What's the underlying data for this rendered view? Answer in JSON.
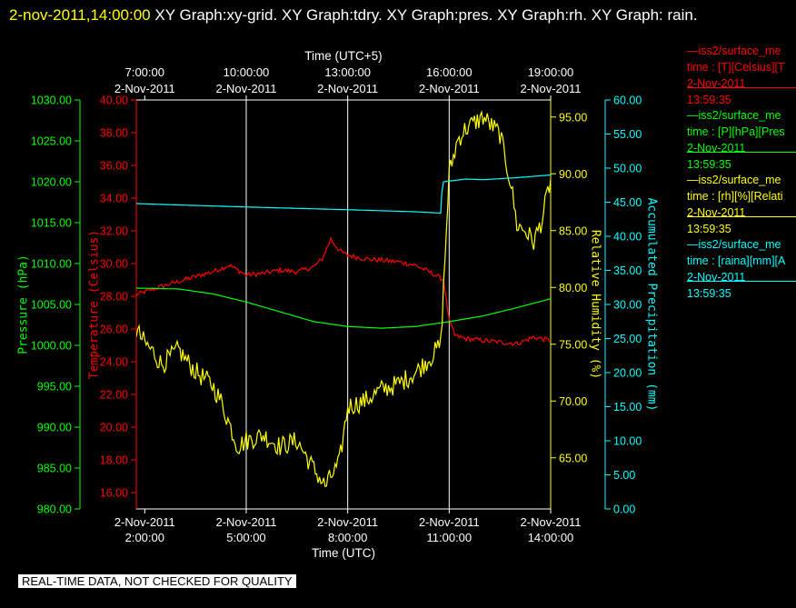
{
  "title": {
    "timestamp": "2-nov-2011,14:00:00",
    "text": "XY Graph:xy-grid.  XY Graph:tdry.  XY Graph:pres.  XY Graph:rh.  XY Graph: rain."
  },
  "footer": "REAL-TIME DATA, NOT CHECKED FOR QUALITY",
  "colors": {
    "temperature": "#ff0000",
    "pressure": "#00ff00",
    "humidity": "#ffff00",
    "precip": "#00ffff",
    "grid": "#ffffff",
    "background": "#000000"
  },
  "legend": [
    {
      "line1": "—iss2/surface_me",
      "line2": "time : [T][Celsius][T",
      "date": "2-Nov-2011",
      "time": "13:59:35",
      "color": "#ff0000"
    },
    {
      "line1": "—iss2/surface_me",
      "line2": "time : [P][hPa][Pres",
      "date": "2-Nov-2011",
      "time": "13:59:35",
      "color": "#00ff00"
    },
    {
      "line1": "—iss2/surface_me",
      "line2": "time : [rh][%][Relati",
      "date": "2-Nov-2011",
      "time": "13:59:35",
      "color": "#ffff00"
    },
    {
      "line1": "—iss2/surface_me",
      "line2": "time : [raina][mm][A",
      "date": "2-Nov-2011",
      "time": "13:59:35",
      "color": "#00ffff"
    }
  ],
  "chart_data": {
    "type": "line",
    "xlabel": "Time (UTC)",
    "x2label": "Time (UTC+5)",
    "xlim": [
      "2011-11-02 01:45",
      "2011-11-02 14:00"
    ],
    "x_ticks": [
      {
        "time": "2011-11-02 02:00",
        "date": "2-Nov-2011",
        "label": "2:00:00"
      },
      {
        "time": "2011-11-02 05:00",
        "date": "2-Nov-2011",
        "label": "5:00:00"
      },
      {
        "time": "2011-11-02 08:00",
        "date": "2-Nov-2011",
        "label": "8:00:00"
      },
      {
        "time": "2011-11-02 11:00",
        "date": "2-Nov-2011",
        "label": "11:00:00"
      },
      {
        "time": "2011-11-02 14:00",
        "date": "2-Nov-2011",
        "label": "14:00:00"
      }
    ],
    "x2_ticks": [
      {
        "time": "2011-11-02 02:00",
        "date": "2-Nov-2011",
        "label": "7:00:00"
      },
      {
        "time": "2011-11-02 05:00",
        "date": "2-Nov-2011",
        "label": "10:00:00"
      },
      {
        "time": "2011-11-02 08:00",
        "date": "2-Nov-2011",
        "label": "13:00:00"
      },
      {
        "time": "2011-11-02 11:00",
        "date": "2-Nov-2011",
        "label": "16:00:00"
      },
      {
        "time": "2011-11-02 14:00",
        "date": "2-Nov-2011",
        "label": "19:00:00"
      }
    ],
    "grid": true,
    "axes": {
      "pressure": {
        "label": "Pressure (hPa)",
        "lim": [
          980,
          1030
        ],
        "ticks": [
          "980.00",
          "985.00",
          "990.00",
          "995.00",
          "1000.00",
          "1005.00",
          "1010.00",
          "1015.00",
          "1020.00",
          "1025.00",
          "1030.00"
        ]
      },
      "temperature": {
        "label": "Temperature (Celsius)",
        "lim": [
          15,
          40
        ],
        "ticks": [
          "16.00",
          "18.00",
          "20.00",
          "22.00",
          "24.00",
          "26.00",
          "28.00",
          "30.00",
          "32.00",
          "34.00",
          "36.00",
          "38.00",
          "40.00"
        ]
      },
      "humidity": {
        "label": "Relative Humidity (%)",
        "lim": [
          60.5,
          96.5
        ],
        "ticks": [
          "65.00",
          "70.00",
          "75.00",
          "80.00",
          "85.00",
          "90.00",
          "95.00"
        ]
      },
      "precip": {
        "label": "Accumulated Precipitation (mm)",
        "lim": [
          0,
          60
        ],
        "ticks": [
          "0.00",
          "5.00",
          "10.00",
          "15.00",
          "20.00",
          "25.00",
          "30.00",
          "35.00",
          "40.00",
          "45.00",
          "50.00",
          "55.00",
          "60.00"
        ]
      }
    },
    "series": [
      {
        "key": "temperature",
        "axis": "temperature",
        "jitter": 0.15,
        "points": [
          [
            "2011-11-02 01:45",
            28.1
          ],
          [
            "2011-11-02 02:30",
            28.6
          ],
          [
            "2011-11-02 03:00",
            28.9
          ],
          [
            "2011-11-02 03:30",
            29.2
          ],
          [
            "2011-11-02 04:00",
            29.5
          ],
          [
            "2011-11-02 04:30",
            29.9
          ],
          [
            "2011-11-02 05:00",
            29.3
          ],
          [
            "2011-11-02 05:30",
            29.4
          ],
          [
            "2011-11-02 06:00",
            29.6
          ],
          [
            "2011-11-02 06:30",
            29.5
          ],
          [
            "2011-11-02 07:00",
            29.8
          ],
          [
            "2011-11-02 07:15",
            30.3
          ],
          [
            "2011-11-02 07:30",
            31.5
          ],
          [
            "2011-11-02 07:45",
            30.8
          ],
          [
            "2011-11-02 08:00",
            30.5
          ],
          [
            "2011-11-02 08:30",
            30.3
          ],
          [
            "2011-11-02 09:00",
            30.2
          ],
          [
            "2011-11-02 09:30",
            30.1
          ],
          [
            "2011-11-02 10:00",
            29.9
          ],
          [
            "2011-11-02 10:30",
            29.4
          ],
          [
            "2011-11-02 10:50",
            29.0
          ],
          [
            "2011-11-02 11:00",
            26.5
          ],
          [
            "2011-11-02 11:10",
            25.6
          ],
          [
            "2011-11-02 11:30",
            25.4
          ],
          [
            "2011-11-02 12:00",
            25.3
          ],
          [
            "2011-11-02 12:30",
            25.2
          ],
          [
            "2011-11-02 13:00",
            25.1
          ],
          [
            "2011-11-02 13:30",
            25.5
          ],
          [
            "2011-11-02 14:00",
            25.3
          ]
        ]
      },
      {
        "key": "pressure",
        "axis": "pressure",
        "jitter": 0,
        "points": [
          [
            "2011-11-02 01:45",
            1007.0
          ],
          [
            "2011-11-02 03:00",
            1006.9
          ],
          [
            "2011-11-02 04:00",
            1006.3
          ],
          [
            "2011-11-02 05:00",
            1005.3
          ],
          [
            "2011-11-02 06:00",
            1004.1
          ],
          [
            "2011-11-02 07:00",
            1002.9
          ],
          [
            "2011-11-02 08:00",
            1002.3
          ],
          [
            "2011-11-02 09:00",
            1002.1
          ],
          [
            "2011-11-02 10:00",
            1002.3
          ],
          [
            "2011-11-02 11:00",
            1002.9
          ],
          [
            "2011-11-02 12:00",
            1003.6
          ],
          [
            "2011-11-02 13:00",
            1004.6
          ],
          [
            "2011-11-02 14:00",
            1005.7
          ]
        ]
      },
      {
        "key": "humidity",
        "axis": "humidity",
        "jitter": 0.9,
        "points": [
          [
            "2011-11-02 01:45",
            76.2
          ],
          [
            "2011-11-02 02:00",
            75.1
          ],
          [
            "2011-11-02 02:15",
            74.3
          ],
          [
            "2011-11-02 02:30",
            73.2
          ],
          [
            "2011-11-02 03:00",
            74.5
          ],
          [
            "2011-11-02 03:15",
            73.5
          ],
          [
            "2011-11-02 03:30",
            72.6
          ],
          [
            "2011-11-02 04:00",
            71.4
          ],
          [
            "2011-11-02 04:15",
            70.0
          ],
          [
            "2011-11-02 04:30",
            68.0
          ],
          [
            "2011-11-02 04:45",
            66.0
          ],
          [
            "2011-11-02 05:00",
            66.5
          ],
          [
            "2011-11-02 05:30",
            67.0
          ],
          [
            "2011-11-02 06:00",
            66.0
          ],
          [
            "2011-11-02 06:30",
            66.5
          ],
          [
            "2011-11-02 07:00",
            64.0
          ],
          [
            "2011-11-02 07:20",
            62.5
          ],
          [
            "2011-11-02 07:45",
            64.5
          ],
          [
            "2011-11-02 08:00",
            69.5
          ],
          [
            "2011-11-02 08:30",
            70.0
          ],
          [
            "2011-11-02 09:00",
            71.0
          ],
          [
            "2011-11-02 09:30",
            71.5
          ],
          [
            "2011-11-02 10:00",
            72.5
          ],
          [
            "2011-11-02 10:30",
            74.0
          ],
          [
            "2011-11-02 10:45",
            75.0
          ],
          [
            "2011-11-02 11:00",
            90.0
          ],
          [
            "2011-11-02 11:15",
            93.0
          ],
          [
            "2011-11-02 11:30",
            94.0
          ],
          [
            "2011-11-02 12:00",
            95.0
          ],
          [
            "2011-11-02 12:30",
            93.5
          ],
          [
            "2011-11-02 12:50",
            89.0
          ],
          [
            "2011-11-02 13:00",
            85.5
          ],
          [
            "2011-11-02 13:15",
            85.0
          ],
          [
            "2011-11-02 13:30",
            84.0
          ],
          [
            "2011-11-02 13:45",
            86.0
          ],
          [
            "2011-11-02 14:00",
            89.5
          ]
        ]
      },
      {
        "key": "precip",
        "axis": "precip",
        "jitter": 0,
        "points": [
          [
            "2011-11-02 01:45",
            44.8
          ],
          [
            "2011-11-02 03:00",
            44.6
          ],
          [
            "2011-11-02 05:00",
            44.3
          ],
          [
            "2011-11-02 08:00",
            43.9
          ],
          [
            "2011-11-02 10:00",
            43.6
          ],
          [
            "2011-11-02 10:45",
            43.4
          ],
          [
            "2011-11-02 10:47",
            46.5
          ],
          [
            "2011-11-02 10:50",
            48.0
          ],
          [
            "2011-11-02 11:30",
            48.4
          ],
          [
            "2011-11-02 12:00",
            48.3
          ],
          [
            "2011-11-02 13:00",
            48.6
          ],
          [
            "2011-11-02 14:00",
            49.0
          ]
        ]
      }
    ]
  }
}
